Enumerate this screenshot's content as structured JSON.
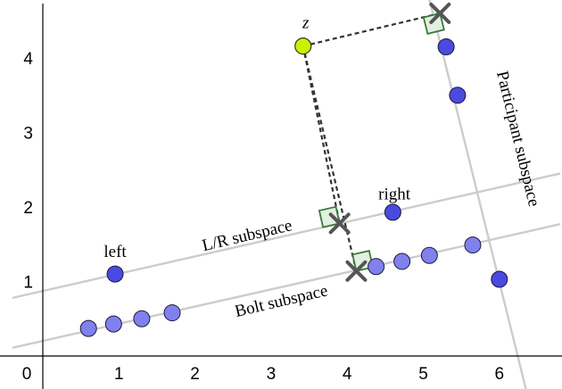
{
  "chart_data": {
    "type": "scatter",
    "xlim": [
      -0.45,
      6.8
    ],
    "ylim": [
      -0.45,
      4.7
    ],
    "grid": false,
    "x_ticks": [
      "0",
      "1",
      "2",
      "3",
      "4",
      "5",
      "6"
    ],
    "y_ticks": [
      "1",
      "2",
      "3",
      "4"
    ],
    "lines": [
      {
        "name": "L/R subspace",
        "from": [
          -0.4,
          0.78
        ],
        "to": [
          6.8,
          2.45
        ]
      },
      {
        "name": "Bolt subspace",
        "from": [
          -0.4,
          0.11
        ],
        "to": [
          6.8,
          1.77
        ]
      },
      {
        "name": "Participant subspace",
        "from": [
          5.07,
          4.83
        ],
        "to": [
          6.35,
          -0.45
        ]
      }
    ],
    "projection_point": {
      "label": "z",
      "x": 3.42,
      "y": 4.16,
      "color": "#c8f000"
    },
    "projections": [
      {
        "target": "L/R subspace",
        "x": 3.9,
        "y": 1.78
      },
      {
        "target": "Bolt subspace",
        "x": 4.12,
        "y": 1.14
      },
      {
        "target": "Participant subspace",
        "x": 5.22,
        "y": 4.6
      }
    ],
    "series": [
      {
        "color": "#4a4ae0",
        "points": [
          [
            0.95,
            1.1
          ],
          [
            4.6,
            1.93
          ],
          [
            5.3,
            4.15
          ],
          [
            5.45,
            3.5
          ],
          [
            6.0,
            1.03
          ]
        ]
      },
      {
        "color": "#8080ee",
        "points": [
          [
            0.6,
            0.37
          ],
          [
            0.93,
            0.43
          ],
          [
            1.3,
            0.5
          ],
          [
            1.7,
            0.58
          ],
          [
            4.38,
            1.2
          ],
          [
            4.72,
            1.27
          ],
          [
            5.08,
            1.35
          ],
          [
            5.65,
            1.49
          ]
        ]
      }
    ],
    "annotations": [
      {
        "text": "left",
        "x": 0.95,
        "y": 1.33
      },
      {
        "text": "right",
        "x": 4.62,
        "y": 2.1
      },
      {
        "text": "L/R subspace",
        "x": 2.7,
        "y": 1.55,
        "rotate": -13.2
      },
      {
        "text": "Bolt subspace",
        "x": 3.15,
        "y": 0.67,
        "rotate": -13.2
      },
      {
        "text": "Participant subspace",
        "x": 6.18,
        "y": 2.9,
        "rotate": 76.4
      }
    ]
  }
}
